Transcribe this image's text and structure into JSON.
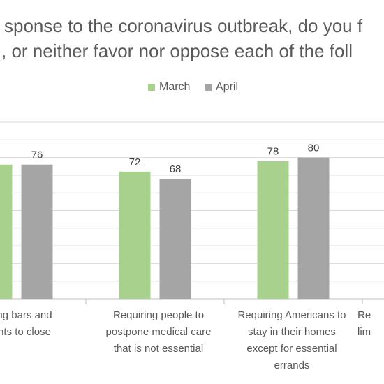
{
  "chart_data": {
    "type": "bar",
    "title_lines": [
      "sponse to the coronavirus outbreak, do you f",
      ", or neither favor nor oppose each of the foll"
    ],
    "categories": [
      "ng bars and\nnts to close",
      "Requiring people to\npostpone medical care\nthat is not essential",
      "Requiring Americans to\nstay in their homes\nexcept for essential\nerrands",
      "Re\nlim"
    ],
    "series": [
      {
        "name": "March",
        "values": [
          76,
          72,
          78,
          null
        ],
        "color": "#a9d18e"
      },
      {
        "name": "April",
        "values": [
          76,
          68,
          80,
          null
        ],
        "color": "#a5a5a5"
      }
    ],
    "data_labels": [
      [
        null,
        "72",
        "78",
        null
      ],
      [
        "76",
        "68",
        "80",
        null
      ]
    ],
    "ylim": [
      0,
      100
    ],
    "grid": true,
    "legend_position": "top"
  }
}
